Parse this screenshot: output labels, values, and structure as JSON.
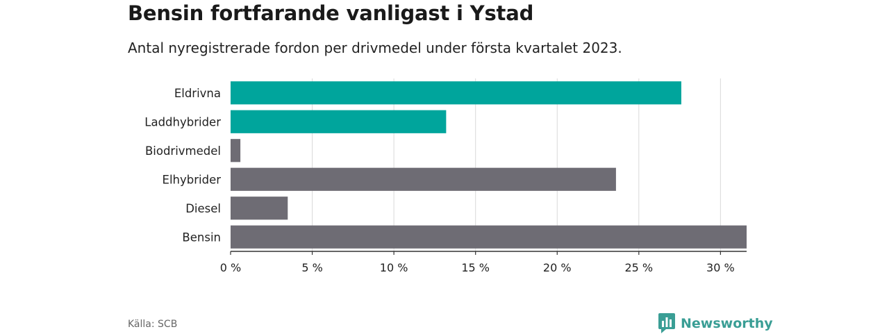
{
  "header": {
    "title": "Bensin fortfarande vanligast i Ystad",
    "subtitle": "Antal nyregistrerade fordon per drivmedel under första kvartalet 2023."
  },
  "footer": {
    "source": "Källa: SCB",
    "brand": "Newsworthy",
    "brand_icon": "newsworthy-logo-icon"
  },
  "colors": {
    "highlight": "#00a59c",
    "default": "#6e6c74",
    "grid": "#d9d9d9",
    "axis": "#333333",
    "brand": "#3a9e95"
  },
  "chart_data": {
    "type": "bar",
    "orientation": "horizontal",
    "categories": [
      "Eldrivna",
      "Laddhybrider",
      "Biodrivmedel",
      "Elhybrider",
      "Diesel",
      "Bensin"
    ],
    "values": [
      27.6,
      13.2,
      0.6,
      23.6,
      3.5,
      31.6
    ],
    "highlight": [
      true,
      true,
      false,
      false,
      false,
      false
    ],
    "xlim": [
      0,
      31.6
    ],
    "ticks": [
      0,
      5,
      10,
      15,
      20,
      25,
      30
    ],
    "tick_labels": [
      "0 %",
      "5 %",
      "10 %",
      "15 %",
      "20 %",
      "25 %",
      "30 %"
    ],
    "grid": true,
    "xlabel": "",
    "ylabel": ""
  }
}
